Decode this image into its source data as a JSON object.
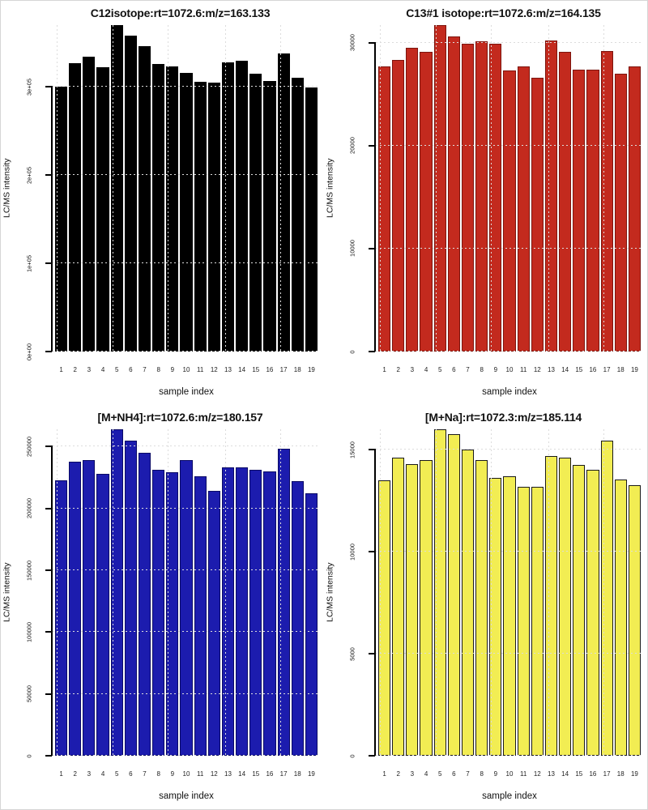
{
  "figure": {
    "background": "#ffffff",
    "layout": {
      "rows": 2,
      "cols": 2
    },
    "grid_style": "dotted-light-gray-over-bars"
  },
  "chart_data": [
    {
      "type": "bar",
      "title": "C12isotope:rt=1072.6:m/z=163.133",
      "xlabel": "sample index",
      "ylabel": "LC/MS intensity",
      "categories": [
        "1",
        "2",
        "3",
        "4",
        "5",
        "6",
        "7",
        "8",
        "9",
        "10",
        "11",
        "12",
        "13",
        "14",
        "15",
        "16",
        "17",
        "18",
        "19"
      ],
      "values": [
        300000,
        327000,
        334000,
        322000,
        370000,
        358000,
        346000,
        326000,
        323000,
        316000,
        306000,
        305000,
        328000,
        330000,
        315000,
        307000,
        338000,
        310000,
        299000
      ],
      "ylim": [
        0,
        370000
      ],
      "yticks": [
        0,
        100000,
        200000,
        300000
      ],
      "ytick_labels": [
        "0e+00",
        "1e+05",
        "2e+05",
        "3e+05"
      ],
      "bar_fill": "#000000",
      "bar_border": "#000000",
      "grid_vertical_percent": [
        1.5,
        22.3,
        43.1,
        64.5,
        85.2
      ],
      "legend": "none"
    },
    {
      "type": "bar",
      "title": "C13#1 isotope:rt=1072.6:m/z=164.135",
      "xlabel": "sample index",
      "ylabel": "LC/MS intensity",
      "categories": [
        "1",
        "2",
        "3",
        "4",
        "5",
        "6",
        "7",
        "8",
        "9",
        "10",
        "11",
        "12",
        "13",
        "14",
        "15",
        "16",
        "17",
        "18",
        "19"
      ],
      "values": [
        27700,
        28300,
        29500,
        29100,
        31700,
        30600,
        29900,
        30100,
        29900,
        27300,
        27700,
        26600,
        30200,
        29100,
        27400,
        27400,
        29200,
        27000,
        27700
      ],
      "ylim": [
        0,
        31700
      ],
      "yticks": [
        0,
        10000,
        20000,
        30000
      ],
      "ytick_labels": [
        "0",
        "10000",
        "20000",
        "30000"
      ],
      "bar_fill": "#c32a1e",
      "bar_border": "#7c140d",
      "grid_vertical_percent": [
        1.5,
        22.3,
        43.1,
        64.5,
        85.2
      ],
      "legend": "none"
    },
    {
      "type": "bar",
      "title": "[M+NH4]:rt=1072.6:m/z=180.157",
      "xlabel": "sample index",
      "ylabel": "LC/MS intensity",
      "categories": [
        "1",
        "2",
        "3",
        "4",
        "5",
        "6",
        "7",
        "8",
        "9",
        "10",
        "11",
        "12",
        "13",
        "14",
        "15",
        "16",
        "17",
        "18",
        "19"
      ],
      "values": [
        223000,
        238000,
        239000,
        228000,
        264000,
        255000,
        245000,
        231000,
        229000,
        239000,
        226000,
        214000,
        233000,
        233000,
        231000,
        230000,
        248000,
        222000,
        212000
      ],
      "ylim": [
        0,
        264000
      ],
      "yticks": [
        0,
        50000,
        100000,
        150000,
        200000,
        250000
      ],
      "ytick_labels": [
        "0",
        "50000",
        "100000",
        "150000",
        "200000",
        "250000"
      ],
      "bar_fill": "#1c1cae",
      "bar_border": "#0a0a66",
      "grid_vertical_percent": [
        1.5,
        22.3,
        43.1,
        64.5,
        85.2
      ],
      "legend": "none"
    },
    {
      "type": "bar",
      "title": "[M+Na]:rt=1072.3:m/z=185.114",
      "xlabel": "sample index",
      "ylabel": "LC/MS intensity",
      "categories": [
        "1",
        "2",
        "3",
        "4",
        "5",
        "6",
        "7",
        "8",
        "9",
        "10",
        "11",
        "12",
        "13",
        "14",
        "15",
        "16",
        "17",
        "18",
        "19"
      ],
      "values": [
        13500,
        14600,
        14300,
        14500,
        16000,
        15750,
        15000,
        14500,
        13600,
        13700,
        13200,
        13200,
        14700,
        14600,
        14250,
        14000,
        15450,
        13550,
        13250
      ],
      "ylim": [
        0,
        16000
      ],
      "yticks": [
        0,
        5000,
        10000,
        15000
      ],
      "ytick_labels": [
        "0",
        "5000",
        "10000",
        "15000"
      ],
      "bar_fill": "#f2ed53",
      "bar_border": "#1a1a1a",
      "grid_vertical_percent": [
        1.5,
        22.3,
        43.1,
        64.5,
        85.2
      ],
      "legend": "none"
    }
  ]
}
